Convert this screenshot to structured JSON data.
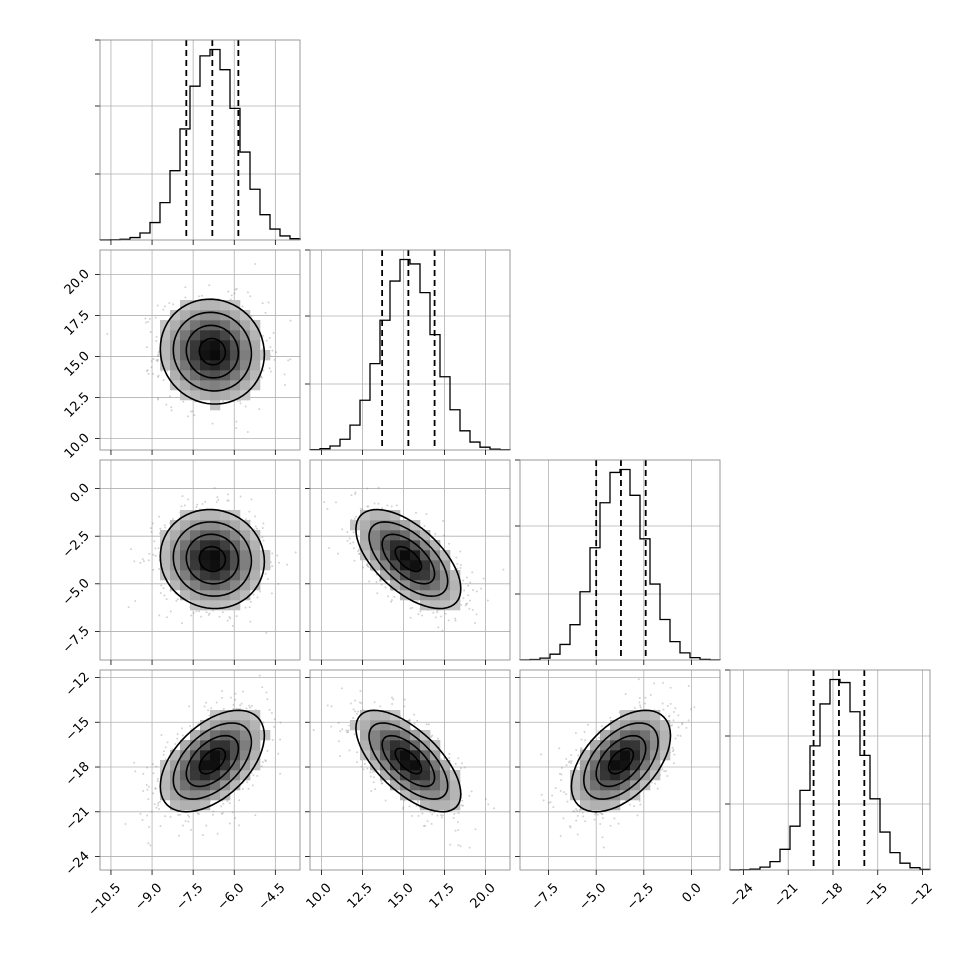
{
  "chart_data": {
    "type": "corner",
    "grid": true,
    "parameters": [
      {
        "mean": -6.8,
        "sd": 0.95,
        "range": [
          -10.9,
          -3.6
        ],
        "ticks": [
          -10.5,
          -9.0,
          -7.5,
          -6.0,
          -4.5
        ],
        "tick_labels": [
          "−10.5",
          "−9.0",
          "−7.5",
          "−6.0",
          "−4.5"
        ],
        "quantiles": [
          -7.75,
          -6.8,
          -5.85
        ]
      },
      {
        "mean": 15.3,
        "sd": 1.6,
        "range": [
          9.3,
          21.5
        ],
        "ticks": [
          10.0,
          12.5,
          15.0,
          17.5,
          20.0
        ],
        "tick_labels": [
          "10.0",
          "12.5",
          "15.0",
          "17.5",
          "20.0"
        ],
        "quantiles": [
          13.7,
          15.3,
          16.9
        ]
      },
      {
        "mean": -3.7,
        "sd": 1.3,
        "range": [
          -9.0,
          1.5
        ],
        "ticks": [
          -7.5,
          -5.0,
          -2.5,
          0.0
        ],
        "tick_labels": [
          "−7.5",
          "−5.0",
          "−2.5",
          "0.0"
        ],
        "quantiles": [
          -5.0,
          -3.7,
          -2.4
        ]
      },
      {
        "mean": -17.6,
        "sd": 1.7,
        "range": [
          -24.9,
          -11.5
        ],
        "ticks": [
          -24,
          -21,
          -18,
          -15,
          -12
        ],
        "tick_labels": [
          "−24",
          "−21",
          "−18",
          "−15",
          "−12"
        ],
        "quantiles": [
          -19.3,
          -17.6,
          -15.9
        ]
      }
    ],
    "correlations": [
      {
        "pair": [
          1,
          0
        ],
        "rho": -0.05
      },
      {
        "pair": [
          2,
          0
        ],
        "rho": -0.05
      },
      {
        "pair": [
          2,
          1
        ],
        "rho": -0.6
      },
      {
        "pair": [
          3,
          0
        ],
        "rho": 0.5
      },
      {
        "pair": [
          3,
          1
        ],
        "rho": -0.65
      },
      {
        "pair": [
          3,
          2
        ],
        "rho": 0.5
      }
    ],
    "contour_levels_sigma": [
      0.5,
      1.0,
      1.5,
      2.0
    ],
    "samples_shown_per_panel": 900,
    "colors": {
      "line": "#000000",
      "points": "#808080",
      "grid": "#b0b0b0",
      "frame": "#808080"
    }
  }
}
